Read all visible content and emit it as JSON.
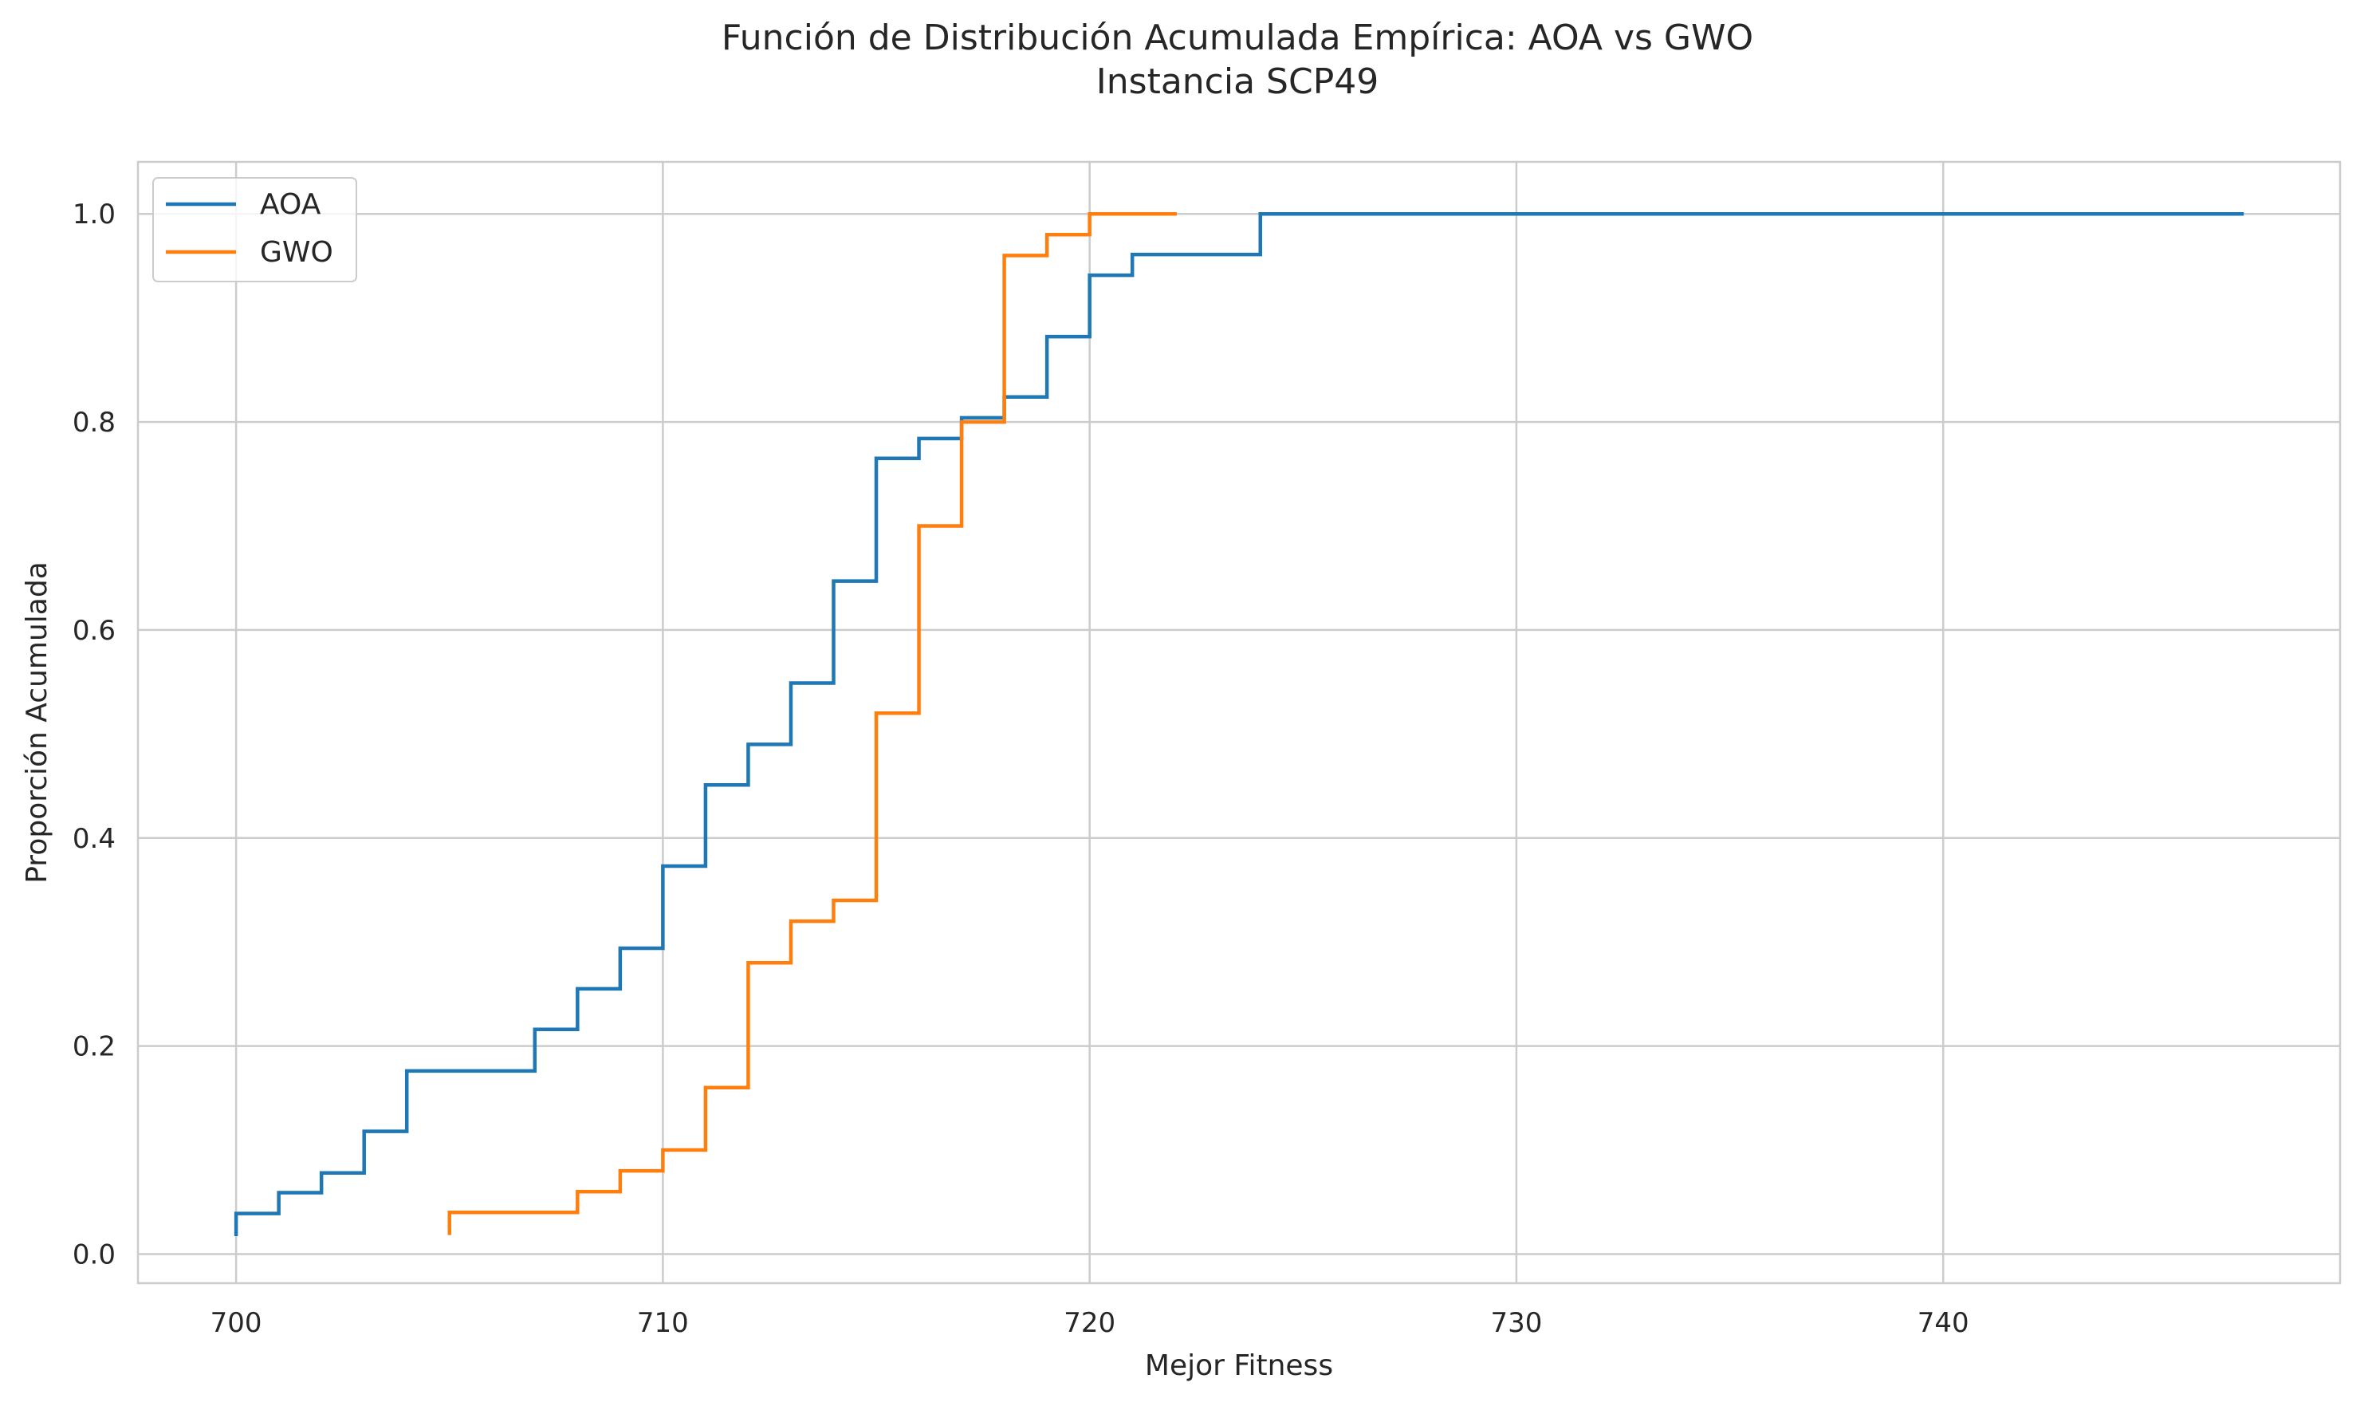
{
  "chart_data": {
    "type": "line",
    "step": true,
    "title": "Función de Distribución Acumulada Empírica: AOA vs GWO",
    "subtitle": "Instancia SCP49",
    "xlabel": "Mejor Fitness",
    "ylabel": "Proporción Acumulada",
    "xlim": [
      697.7,
      749.3
    ],
    "ylim": [
      -0.028,
      1.05
    ],
    "xticks": [
      700,
      710,
      720,
      730,
      740
    ],
    "xtick_labels": [
      "700",
      "710",
      "720",
      "730",
      "740"
    ],
    "yticks": [
      0.0,
      0.2,
      0.4,
      0.6,
      0.8,
      1.0
    ],
    "ytick_labels": [
      "0.0",
      "0.2",
      "0.4",
      "0.6",
      "0.8",
      "1.0"
    ],
    "grid": true,
    "legend_position": "top-left",
    "series": [
      {
        "name": "AOA",
        "color": "#1f77b4",
        "x": [
          700,
          701,
          702,
          703,
          704,
          707,
          708,
          709,
          710,
          711,
          712,
          713,
          714,
          715,
          716,
          717,
          718,
          719,
          720,
          721,
          724,
          747
        ],
        "y": [
          0.039,
          0.059,
          0.078,
          0.118,
          0.176,
          0.216,
          0.255,
          0.294,
          0.373,
          0.451,
          0.49,
          0.549,
          0.647,
          0.765,
          0.784,
          0.804,
          0.824,
          0.882,
          0.941,
          0.961,
          1.0,
          1.0
        ]
      },
      {
        "name": "GWO",
        "color": "#ff7f0e",
        "x": [
          705,
          708,
          709,
          710,
          711,
          712,
          713,
          714,
          715,
          716,
          717,
          718,
          719,
          720,
          722
        ],
        "y": [
          0.04,
          0.06,
          0.08,
          0.1,
          0.16,
          0.28,
          0.32,
          0.34,
          0.52,
          0.7,
          0.8,
          0.96,
          0.98,
          1.0,
          1.0
        ]
      }
    ]
  },
  "colors": {
    "grid": "#cccccc",
    "frame": "#cccccc",
    "text": "#262626"
  }
}
